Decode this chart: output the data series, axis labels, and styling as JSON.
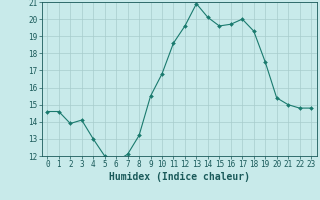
{
  "x": [
    0,
    1,
    2,
    3,
    4,
    5,
    6,
    7,
    8,
    9,
    10,
    11,
    12,
    13,
    14,
    15,
    16,
    17,
    18,
    19,
    20,
    21,
    22,
    23
  ],
  "y": [
    14.6,
    14.6,
    13.9,
    14.1,
    13.0,
    12.0,
    11.7,
    12.1,
    13.2,
    15.5,
    16.8,
    18.6,
    19.6,
    20.9,
    20.1,
    19.6,
    19.7,
    20.0,
    19.3,
    17.5,
    15.4,
    15.0,
    14.8,
    14.8
  ],
  "line_color": "#1a7a6e",
  "marker": "D",
  "marker_size": 2.0,
  "bg_color": "#c8eaea",
  "grid_color": "#a8cccc",
  "xlabel": "Humidex (Indice chaleur)",
  "ylim": [
    12,
    21
  ],
  "xlim": [
    -0.5,
    23.5
  ],
  "yticks": [
    12,
    13,
    14,
    15,
    16,
    17,
    18,
    19,
    20,
    21
  ],
  "xticks": [
    0,
    1,
    2,
    3,
    4,
    5,
    6,
    7,
    8,
    9,
    10,
    11,
    12,
    13,
    14,
    15,
    16,
    17,
    18,
    19,
    20,
    21,
    22,
    23
  ],
  "xtick_labels": [
    "0",
    "1",
    "2",
    "3",
    "4",
    "5",
    "6",
    "7",
    "8",
    "9",
    "10",
    "11",
    "12",
    "13",
    "14",
    "15",
    "16",
    "17",
    "18",
    "19",
    "20",
    "21",
    "22",
    "23"
  ],
  "ytick_labels": [
    "12",
    "13",
    "14",
    "15",
    "16",
    "17",
    "18",
    "19",
    "20",
    "21"
  ],
  "font_color": "#1a5a5a",
  "tick_font_size": 5.5,
  "xlabel_font_size": 7.0,
  "linewidth": 0.8
}
